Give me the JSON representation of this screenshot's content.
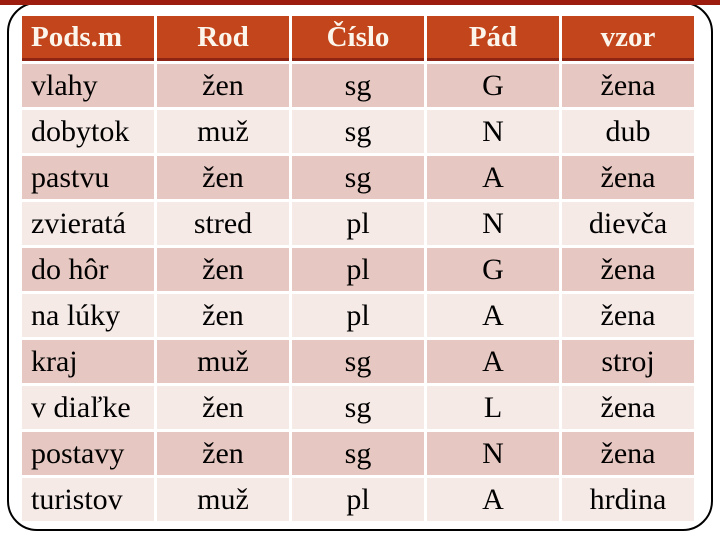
{
  "slide": {
    "background": "#ffffff",
    "accent_bar_color": "#9c1d10",
    "frame_border_color": "#000000"
  },
  "table": {
    "header_bg": "#c2451c",
    "header_text_color": "#fcf5ec",
    "header_underline_color": "#8e2414",
    "row_dark_bg": "#e6c7c1",
    "row_light_bg": "#f6eae6",
    "columns": [
      "Pods.m",
      "Rod",
      "Číslo",
      "Pád",
      "vzor"
    ],
    "rows": [
      [
        "vlahy",
        "žen",
        "sg",
        "G",
        "žena"
      ],
      [
        "dobytok",
        "muž",
        "sg",
        "N",
        "dub"
      ],
      [
        "pastvu",
        "žen",
        "sg",
        "A",
        "žena"
      ],
      [
        "zvieratá",
        "stred",
        "pl",
        "N",
        "dievča"
      ],
      [
        "do hôr",
        "žen",
        "pl",
        "G",
        "žena"
      ],
      [
        "na lúky",
        "žen",
        "pl",
        "A",
        "žena"
      ],
      [
        "kraj",
        "muž",
        "sg",
        "A",
        "stroj"
      ],
      [
        "v diaľke",
        "žen",
        "sg",
        "L",
        "žena"
      ],
      [
        "postavy",
        "žen",
        "sg",
        "N",
        "žena"
      ],
      [
        "turistov",
        "muž",
        "pl",
        "A",
        "hrdina"
      ]
    ]
  }
}
